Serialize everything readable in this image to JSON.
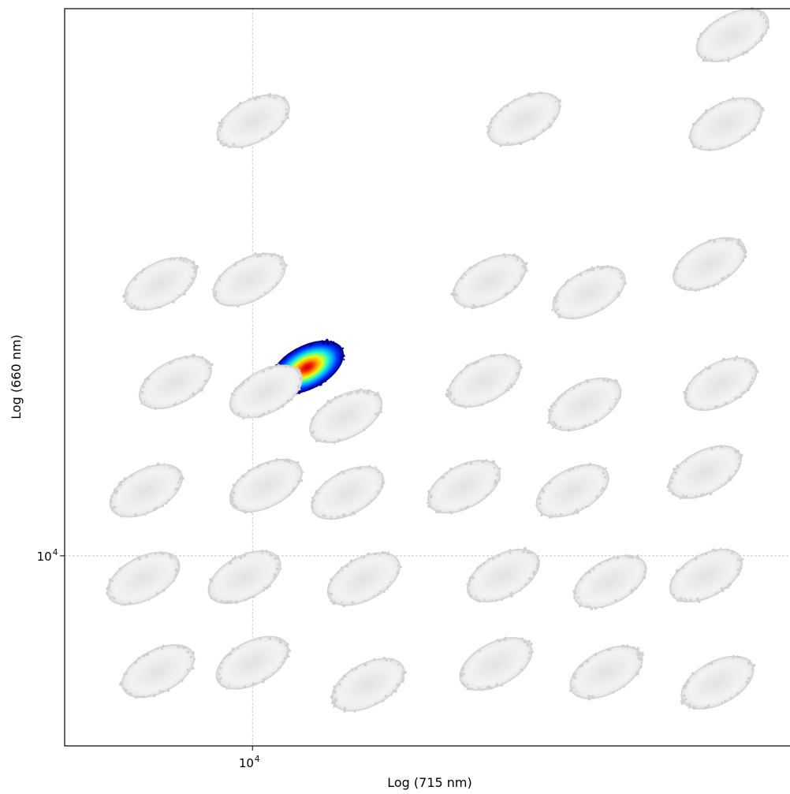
{
  "chart_data": {
    "type": "scatter",
    "subtype": "density-scatter-clusters",
    "title": "",
    "xlabel": "Log (715 nm)",
    "ylabel": "Log (660 nm)",
    "xscale": "log",
    "yscale": "log",
    "xlim": [
      3000,
      320000
    ],
    "ylim": [
      3000,
      320000
    ],
    "grid": "dashed reference lines at 10^4 on both axes",
    "xticks": [
      {
        "value": 10000,
        "base": "10",
        "exp": "4"
      }
    ],
    "yticks": [
      {
        "value": 10000,
        "base": "10",
        "exp": "4"
      }
    ],
    "highlight_colormap": "jet",
    "background_color": "#d0d0d0",
    "clusters": [
      {
        "x": 14200,
        "y": 33000,
        "highlight": true
      },
      {
        "x": 217000,
        "y": 270000,
        "highlight": false
      },
      {
        "x": 10050,
        "y": 157000,
        "highlight": false
      },
      {
        "x": 57000,
        "y": 159000,
        "highlight": false
      },
      {
        "x": 208000,
        "y": 154000,
        "highlight": false
      },
      {
        "x": 5550,
        "y": 56000,
        "highlight": false
      },
      {
        "x": 9800,
        "y": 57500,
        "highlight": false
      },
      {
        "x": 45700,
        "y": 57000,
        "highlight": false
      },
      {
        "x": 86500,
        "y": 53000,
        "highlight": false
      },
      {
        "x": 187000,
        "y": 63500,
        "highlight": false
      },
      {
        "x": 6100,
        "y": 30000,
        "highlight": false
      },
      {
        "x": 10900,
        "y": 28300,
        "highlight": false
      },
      {
        "x": 18200,
        "y": 24200,
        "highlight": false
      },
      {
        "x": 44200,
        "y": 30300,
        "highlight": false
      },
      {
        "x": 84200,
        "y": 26100,
        "highlight": false
      },
      {
        "x": 201000,
        "y": 29700,
        "highlight": false
      },
      {
        "x": 5060,
        "y": 15100,
        "highlight": false
      },
      {
        "x": 10900,
        "y": 15600,
        "highlight": false
      },
      {
        "x": 18400,
        "y": 14900,
        "highlight": false
      },
      {
        "x": 38800,
        "y": 15500,
        "highlight": false
      },
      {
        "x": 77800,
        "y": 15100,
        "highlight": false
      },
      {
        "x": 182000,
        "y": 17000,
        "highlight": false
      },
      {
        "x": 4970,
        "y": 8660,
        "highlight": false
      },
      {
        "x": 9500,
        "y": 8730,
        "highlight": false
      },
      {
        "x": 20400,
        "y": 8630,
        "highlight": false
      },
      {
        "x": 49900,
        "y": 8820,
        "highlight": false
      },
      {
        "x": 99000,
        "y": 8490,
        "highlight": false
      },
      {
        "x": 183000,
        "y": 8820,
        "highlight": false
      },
      {
        "x": 5460,
        "y": 4820,
        "highlight": false
      },
      {
        "x": 10000,
        "y": 5080,
        "highlight": false
      },
      {
        "x": 21000,
        "y": 4420,
        "highlight": false
      },
      {
        "x": 47600,
        "y": 5040,
        "highlight": false
      },
      {
        "x": 96600,
        "y": 4780,
        "highlight": false
      },
      {
        "x": 197000,
        "y": 4480,
        "highlight": false
      }
    ]
  }
}
